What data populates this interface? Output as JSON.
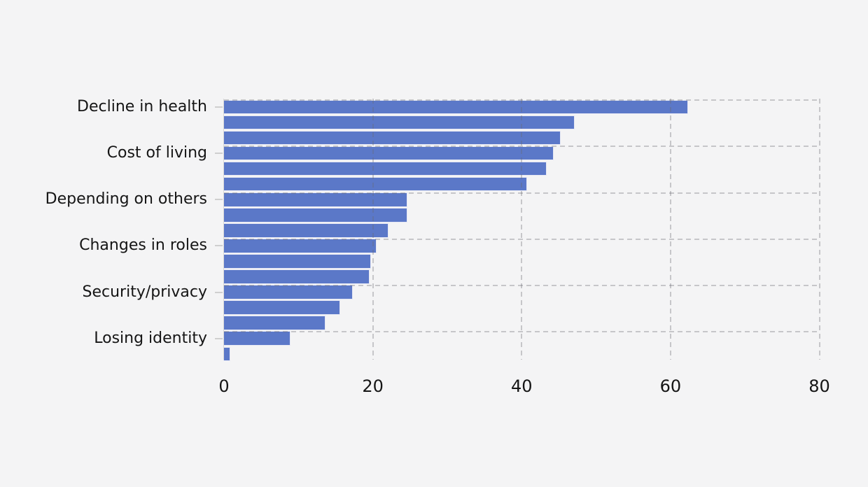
{
  "chart_data": {
    "type": "bar",
    "orientation": "horizontal",
    "title": "",
    "xlabel": "",
    "ylabel": "",
    "xlim": [
      0,
      80
    ],
    "x_ticks": [
      0,
      20,
      40,
      60,
      80
    ],
    "grid": "dashed; vertical lines at x ticks 20/40/60/80, horizontal lines at each category-group boundary, drawn over bars",
    "legend": "none",
    "bar_groups": [
      {
        "label": "Decline in health",
        "values": [
          62.2,
          47.0,
          45.1
        ]
      },
      {
        "label": "Cost of living",
        "values": [
          44.1,
          43.2,
          40.6
        ]
      },
      {
        "label": "Depending on others",
        "values": [
          24.5,
          24.5,
          21.9
        ]
      },
      {
        "label": "Changes in roles",
        "values": [
          20.3,
          19.6,
          19.4
        ]
      },
      {
        "label": "Security/privacy",
        "values": [
          17.1,
          15.4,
          13.5
        ]
      },
      {
        "label": "Losing identity",
        "values": [
          8.8,
          0.7
        ]
      }
    ],
    "note": "labels and axis tick marks attach to the first bar of each group",
    "colors": {
      "bar_fill": "#5b78c8",
      "bar_border": "#e6e8f4",
      "background": "#f4f4f5",
      "grid": "rgba(104,104,112,0.33)",
      "axis_spine": "#d9d9d9",
      "tick_mark": "#cfcfcf",
      "text": "#151515"
    }
  }
}
